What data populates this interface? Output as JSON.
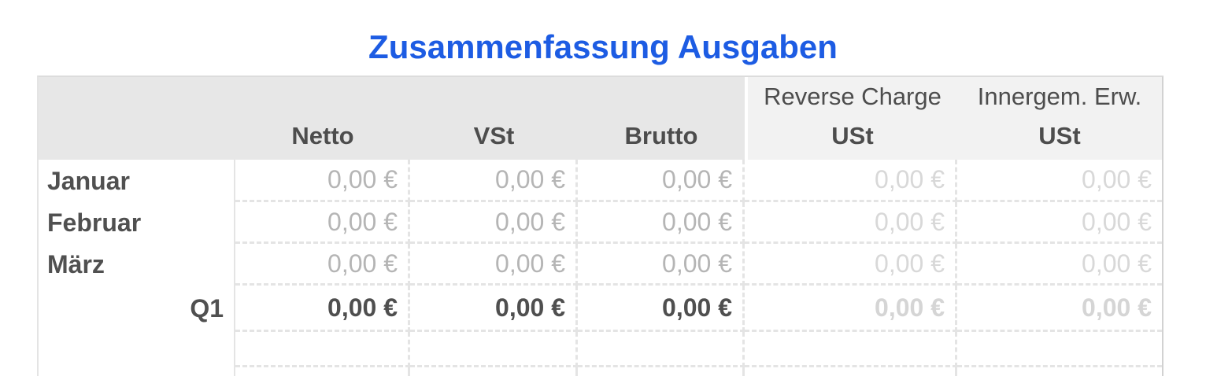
{
  "title": "Zusammenfassung Ausgaben",
  "table": {
    "header": {
      "corner": "",
      "netto": "Netto",
      "vst": "VSt",
      "brutto": "Brutto",
      "reverse_charge_line1": "Reverse Charge",
      "reverse_charge_line2": "USt",
      "innergem_line1": "Innergem. Erw.",
      "innergem_line2": "USt"
    },
    "rows": [
      {
        "label": "Januar",
        "values": [
          "0,00 €",
          "0,00 €",
          "0,00 €",
          "0,00 €",
          "0,00 €"
        ]
      },
      {
        "label": "Februar",
        "values": [
          "0,00 €",
          "0,00 €",
          "0,00 €",
          "0,00 €",
          "0,00 €"
        ]
      },
      {
        "label": "März",
        "values": [
          "0,00 €",
          "0,00 €",
          "0,00 €",
          "0,00 €",
          "0,00 €"
        ]
      },
      {
        "label": "Q1",
        "values": [
          "0,00 €",
          "0,00 €",
          "0,00 €",
          "0,00 €",
          "0,00 €"
        ],
        "is_total": true
      }
    ]
  },
  "colors": {
    "title_blue": "#1d5ce3",
    "header_bg_left": "#e7e7e7",
    "header_bg_right": "#f2f2f2",
    "header_text": "#4d4d4d",
    "row_label_text": "#505050",
    "value_muted": "#b5b5b5",
    "value_faint": "#d8d8d8",
    "total_value_text": "#4f4f4f",
    "grid_dashed": "#e4e4e4"
  }
}
